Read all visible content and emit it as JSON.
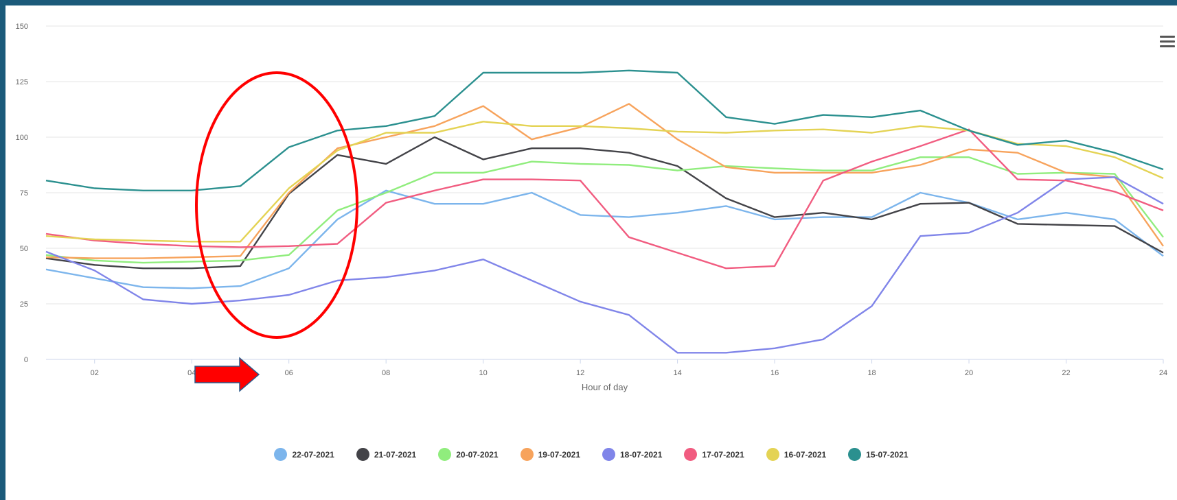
{
  "chart_data": {
    "type": "line",
    "xlabel": "Hour of day",
    "ylabel": "",
    "ylim": [
      0,
      150
    ],
    "xlim": [
      1,
      24
    ],
    "yticks": [
      0,
      25,
      50,
      75,
      100,
      125,
      150
    ],
    "xticks": [
      "02",
      "04",
      "06",
      "08",
      "10",
      "12",
      "14",
      "16",
      "18",
      "20",
      "22",
      "24"
    ],
    "x": [
      1,
      2,
      3,
      4,
      5,
      6,
      7,
      8,
      9,
      10,
      11,
      12,
      13,
      14,
      15,
      16,
      17,
      18,
      19,
      20,
      21,
      22,
      23,
      24
    ],
    "grid": "horizontal",
    "legend_position": "bottom",
    "series": [
      {
        "name": "22-07-2021",
        "color": "#7cb5ec",
        "values": [
          40.5,
          36.5,
          32.5,
          32,
          33,
          41,
          63,
          76,
          70,
          70,
          75,
          65,
          64,
          66,
          69,
          63,
          64,
          64,
          75,
          70.5,
          63,
          66,
          63,
          46.5
        ]
      },
      {
        "name": "21-07-2021",
        "color": "#434348",
        "values": [
          45.5,
          42.5,
          41,
          41,
          42,
          74.5,
          92,
          88,
          100,
          90,
          95,
          95,
          93,
          87,
          72.5,
          64,
          66,
          63,
          70,
          70.5,
          61,
          60.5,
          60,
          48
        ]
      },
      {
        "name": "20-07-2021",
        "color": "#90ed7d",
        "values": [
          47,
          44.5,
          43.5,
          44,
          44.5,
          47,
          67,
          75,
          84,
          84,
          89,
          88,
          87.5,
          85,
          87,
          86,
          85,
          85,
          91,
          91,
          83.5,
          84,
          83.5,
          55
        ]
      },
      {
        "name": "19-07-2021",
        "color": "#f7a35c",
        "values": [
          46,
          45.5,
          45.5,
          46,
          46.5,
          75,
          95,
          100,
          105,
          114,
          99,
          104.5,
          115,
          99,
          86.5,
          84,
          84,
          84,
          87.5,
          94.5,
          93,
          84,
          82,
          51
        ]
      },
      {
        "name": "18-07-2021",
        "color": "#8085e9",
        "values": [
          48.5,
          40,
          27,
          25,
          26.5,
          29,
          35.5,
          37,
          40,
          45,
          35.5,
          26,
          20,
          3,
          3,
          5,
          9,
          24,
          55.5,
          57,
          66,
          81,
          82,
          70
        ]
      },
      {
        "name": "17-07-2021",
        "color": "#f15c80",
        "values": [
          56.5,
          53.5,
          52,
          51,
          50.5,
          51,
          52,
          70.5,
          76,
          81,
          81,
          80.5,
          55,
          48,
          41,
          42,
          80.5,
          89,
          96,
          103.5,
          81,
          80.5,
          75.5,
          67
        ]
      },
      {
        "name": "16-07-2021",
        "color": "#e4d354",
        "values": [
          55.5,
          54,
          53.5,
          53,
          53,
          77,
          94,
          102,
          102,
          107,
          105,
          105,
          104,
          102.5,
          102,
          103,
          103.5,
          102,
          105,
          103,
          97,
          96,
          91,
          81.5
        ]
      },
      {
        "name": "15-07-2021",
        "color": "#2b908f",
        "values": [
          80.5,
          77,
          76,
          76,
          78,
          95.5,
          103,
          105,
          109.5,
          129,
          129,
          129,
          130,
          129,
          109,
          106,
          110,
          109,
          112,
          103,
          96.5,
          98.5,
          93,
          85.5
        ]
      }
    ]
  },
  "annotations": {
    "ellipse_color": "#ff0000",
    "arrow_color": "#ff0000"
  },
  "toolbar": {
    "menu_icon": "hamburger-menu-icon"
  }
}
